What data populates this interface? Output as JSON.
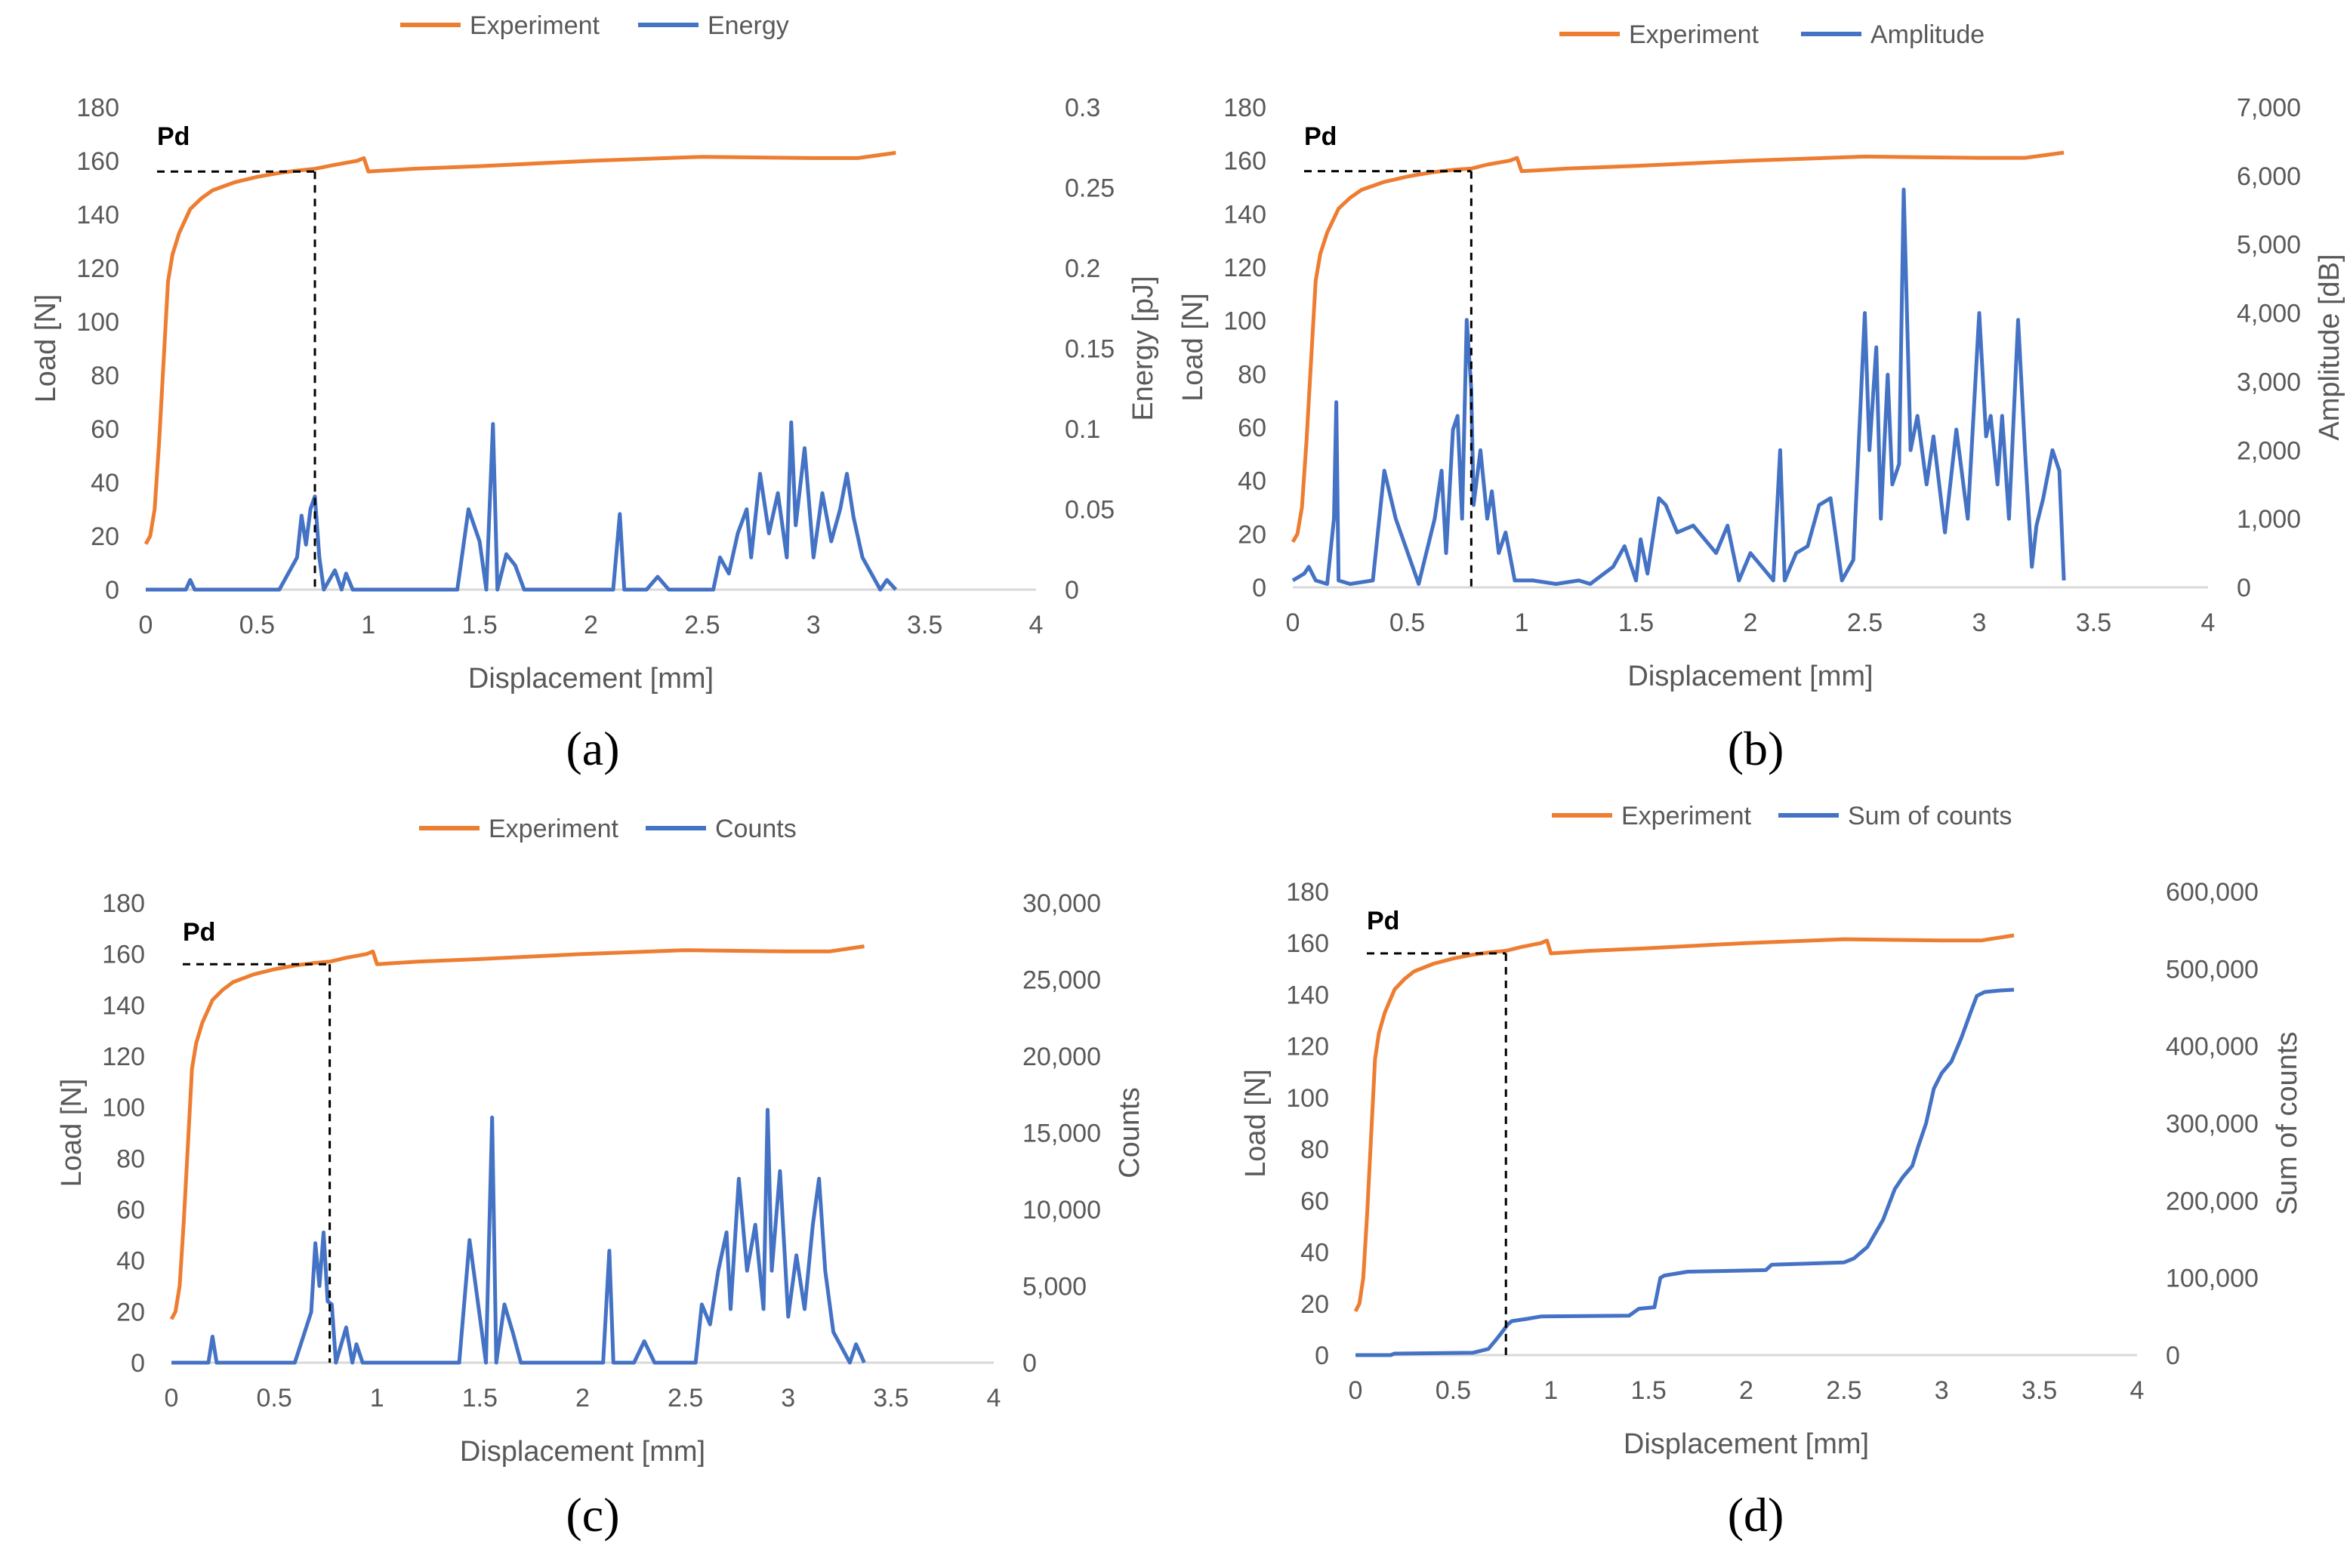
{
  "colors": {
    "experiment": "#ED7D31",
    "acoustic": "#4472C4",
    "axis_text": "#595959",
    "gridline": "#D9D9D9",
    "marker": "#000000"
  },
  "shared": {
    "xlabel": "Displacement [mm]",
    "ylabel_left": "Load [N]",
    "experiment_label": "Experiment",
    "pd_label": "Pd",
    "x_ticks": [
      "0",
      "0.5",
      "1",
      "1.5",
      "2",
      "2.5",
      "3",
      "3.5",
      "4"
    ],
    "y_left_ticks": [
      "0",
      "20",
      "40",
      "60",
      "80",
      "100",
      "120",
      "140",
      "160",
      "180"
    ]
  },
  "chart_data": [
    {
      "id": "a",
      "caption": "(a)",
      "type": "line",
      "title": "",
      "xlabel": "Displacement [mm]",
      "ylabel_left": "Load [N]",
      "ylabel_right": "Energy [pJ]",
      "xlim": [
        0,
        4
      ],
      "ylim_left": [
        0,
        180
      ],
      "ylim_right": [
        0,
        0.3
      ],
      "right_ticks": [
        "0",
        "0.05",
        "0.1",
        "0.15",
        "0.2",
        "0.25",
        "0.3"
      ],
      "legend": [
        "Experiment",
        "Energy"
      ],
      "pd": {
        "x": 0.76,
        "load": 156
      },
      "cumulative": false,
      "series": [
        {
          "name": "Experiment",
          "axis": "left",
          "x": [
            0,
            0.02,
            0.04,
            0.06,
            0.08,
            0.1,
            0.12,
            0.15,
            0.2,
            0.25,
            0.3,
            0.4,
            0.5,
            0.6,
            0.7,
            0.76,
            0.85,
            0.95,
            0.98,
            1.0,
            1.2,
            1.5,
            2.0,
            2.5,
            3.0,
            3.2,
            3.37
          ],
          "y": [
            17,
            20,
            30,
            55,
            85,
            115,
            125,
            133,
            142,
            146,
            149,
            152,
            154,
            155.5,
            156.5,
            157,
            158.5,
            160,
            161,
            156,
            157,
            158,
            160,
            161.5,
            161,
            161,
            163
          ]
        },
        {
          "name": "Energy",
          "axis": "right",
          "x": [
            0,
            0.18,
            0.2,
            0.22,
            0.6,
            0.68,
            0.7,
            0.72,
            0.74,
            0.76,
            0.78,
            0.8,
            0.85,
            0.88,
            0.9,
            0.93,
            0.95,
            1.4,
            1.45,
            1.5,
            1.53,
            1.56,
            1.58,
            1.62,
            1.66,
            1.7,
            2.1,
            2.13,
            2.15,
            2.25,
            2.3,
            2.35,
            2.55,
            2.58,
            2.62,
            2.66,
            2.7,
            2.72,
            2.76,
            2.8,
            2.84,
            2.88,
            2.9,
            2.92,
            2.96,
            3.0,
            3.04,
            3.08,
            3.12,
            3.15,
            3.18,
            3.22,
            3.3,
            3.33,
            3.37
          ],
          "y": [
            0,
            0,
            0.006,
            0,
            0,
            0.02,
            0.046,
            0.028,
            0.05,
            0.058,
            0.02,
            0,
            0.012,
            0,
            0.01,
            0,
            0,
            0,
            0.05,
            0.03,
            0,
            0.103,
            0,
            0.022,
            0.015,
            0,
            0,
            0.047,
            0,
            0,
            0.008,
            0,
            0,
            0.02,
            0.01,
            0.035,
            0.05,
            0.02,
            0.072,
            0.035,
            0.06,
            0.02,
            0.104,
            0.04,
            0.088,
            0.02,
            0.06,
            0.03,
            0.05,
            0.072,
            0.045,
            0.02,
            0,
            0.006,
            0
          ]
        }
      ]
    },
    {
      "id": "b",
      "caption": "(b)",
      "type": "line",
      "title": "",
      "xlabel": "Displacement [mm]",
      "ylabel_left": "Load [N]",
      "ylabel_right": "Amplitude [dB]",
      "xlim": [
        0,
        4
      ],
      "ylim_left": [
        0,
        180
      ],
      "ylim_right": [
        0,
        7000
      ],
      "right_ticks": [
        "0",
        "1,000",
        "2,000",
        "3,000",
        "4,000",
        "5,000",
        "6,000",
        "7,000"
      ],
      "legend": [
        "Experiment",
        "Amplitude"
      ],
      "pd": {
        "x": 0.78,
        "load": 156
      },
      "cumulative": false,
      "series": [
        {
          "name": "Experiment",
          "axis": "left",
          "x": [
            0,
            0.02,
            0.04,
            0.06,
            0.08,
            0.1,
            0.12,
            0.15,
            0.2,
            0.25,
            0.3,
            0.4,
            0.5,
            0.6,
            0.7,
            0.78,
            0.85,
            0.95,
            0.98,
            1.0,
            1.2,
            1.5,
            2.0,
            2.5,
            3.0,
            3.2,
            3.37
          ],
          "y": [
            17,
            20,
            30,
            55,
            85,
            115,
            125,
            133,
            142,
            146,
            149,
            152,
            154,
            155.5,
            156.5,
            157,
            158.5,
            160,
            161,
            156,
            157,
            158,
            160,
            161.5,
            161,
            161,
            163
          ]
        },
        {
          "name": "Amplitude",
          "axis": "right",
          "x": [
            0,
            0.05,
            0.07,
            0.1,
            0.15,
            0.18,
            0.19,
            0.2,
            0.25,
            0.35,
            0.4,
            0.45,
            0.55,
            0.62,
            0.65,
            0.67,
            0.7,
            0.72,
            0.74,
            0.76,
            0.78,
            0.79,
            0.82,
            0.85,
            0.87,
            0.9,
            0.93,
            0.97,
            1.05,
            1.15,
            1.25,
            1.3,
            1.4,
            1.45,
            1.5,
            1.52,
            1.55,
            1.6,
            1.63,
            1.68,
            1.75,
            1.85,
            1.9,
            1.95,
            2.0,
            2.05,
            2.1,
            2.13,
            2.15,
            2.2,
            2.25,
            2.3,
            2.35,
            2.4,
            2.45,
            2.5,
            2.52,
            2.55,
            2.57,
            2.6,
            2.62,
            2.65,
            2.67,
            2.7,
            2.73,
            2.77,
            2.8,
            2.85,
            2.9,
            2.95,
            3.0,
            3.03,
            3.05,
            3.08,
            3.1,
            3.13,
            3.17,
            3.2,
            3.23,
            3.25,
            3.28,
            3.32,
            3.35,
            3.37
          ],
          "y": [
            100,
            200,
            300,
            100,
            50,
            1000,
            2700,
            100,
            50,
            100,
            1700,
            1000,
            50,
            1000,
            1700,
            500,
            2300,
            2500,
            1000,
            3900,
            2900,
            1200,
            2000,
            1000,
            1400,
            500,
            800,
            100,
            100,
            50,
            100,
            50,
            300,
            600,
            100,
            700,
            200,
            1300,
            1200,
            800,
            900,
            500,
            900,
            100,
            500,
            300,
            100,
            2000,
            100,
            500,
            600,
            1200,
            1300,
            100,
            400,
            4000,
            2000,
            3500,
            1000,
            3100,
            1500,
            1800,
            5800,
            2000,
            2500,
            1500,
            2200,
            800,
            2300,
            1000,
            4000,
            2200,
            2500,
            1500,
            2500,
            1000,
            3900,
            2000,
            300,
            900,
            1300,
            2000,
            1700,
            100
          ]
        }
      ]
    },
    {
      "id": "c",
      "caption": "(c)",
      "type": "line",
      "title": "",
      "xlabel": "Displacement [mm]",
      "ylabel_left": "Load [N]",
      "ylabel_right": "Counts",
      "xlim": [
        0,
        4
      ],
      "ylim_left": [
        0,
        180
      ],
      "ylim_right": [
        0,
        30000
      ],
      "right_ticks": [
        "0",
        "5,000",
        "10,000",
        "15,000",
        "20,000",
        "25,000",
        "30,000"
      ],
      "legend": [
        "Experiment",
        "Counts"
      ],
      "pd": {
        "x": 0.77,
        "load": 156
      },
      "cumulative": false,
      "series": [
        {
          "name": "Experiment",
          "axis": "left",
          "x": [
            0,
            0.02,
            0.04,
            0.06,
            0.08,
            0.1,
            0.12,
            0.15,
            0.2,
            0.25,
            0.3,
            0.4,
            0.5,
            0.6,
            0.7,
            0.77,
            0.85,
            0.95,
            0.98,
            1.0,
            1.2,
            1.5,
            2.0,
            2.5,
            3.0,
            3.2,
            3.37
          ],
          "y": [
            17,
            20,
            30,
            55,
            85,
            115,
            125,
            133,
            142,
            146,
            149,
            152,
            154,
            155.5,
            156.5,
            157,
            158.5,
            160,
            161,
            156,
            157,
            158,
            160,
            161.5,
            161,
            161,
            163
          ]
        },
        {
          "name": "Counts",
          "axis": "right",
          "x": [
            0,
            0.18,
            0.2,
            0.22,
            0.6,
            0.68,
            0.7,
            0.72,
            0.74,
            0.76,
            0.78,
            0.8,
            0.85,
            0.88,
            0.9,
            0.93,
            0.95,
            1.4,
            1.45,
            1.5,
            1.53,
            1.56,
            1.58,
            1.62,
            1.66,
            1.7,
            2.1,
            2.13,
            2.15,
            2.25,
            2.3,
            2.35,
            2.55,
            2.58,
            2.62,
            2.66,
            2.7,
            2.72,
            2.76,
            2.8,
            2.84,
            2.88,
            2.9,
            2.92,
            2.96,
            3.0,
            3.04,
            3.08,
            3.12,
            3.15,
            3.18,
            3.22,
            3.3,
            3.33,
            3.37
          ],
          "y": [
            0,
            0,
            1700,
            0,
            0,
            3300,
            7800,
            5000,
            8500,
            4000,
            3800,
            0,
            2300,
            0,
            1200,
            0,
            0,
            0,
            8000,
            3000,
            0,
            16000,
            0,
            3800,
            2000,
            0,
            0,
            7300,
            0,
            0,
            1400,
            0,
            0,
            3800,
            2500,
            6000,
            8500,
            3500,
            12000,
            6000,
            9000,
            3500,
            16500,
            6000,
            12500,
            3000,
            7000,
            3500,
            9000,
            12000,
            6000,
            2000,
            0,
            1200,
            0
          ]
        }
      ]
    },
    {
      "id": "d",
      "caption": "(d)",
      "type": "line",
      "title": "",
      "xlabel": "Displacement [mm]",
      "ylabel_left": "Load [N]",
      "ylabel_right": "Sum of counts",
      "xlim": [
        0,
        4
      ],
      "ylim_left": [
        0,
        180
      ],
      "ylim_right": [
        0,
        600000
      ],
      "right_ticks": [
        "0",
        "100,000",
        "200,000",
        "300,000",
        "400,000",
        "500,000",
        "600,000"
      ],
      "legend": [
        "Experiment",
        "Sum of counts"
      ],
      "pd": {
        "x": 0.77,
        "load": 156
      },
      "cumulative": true,
      "series": [
        {
          "name": "Experiment",
          "axis": "left",
          "x": [
            0,
            0.02,
            0.04,
            0.06,
            0.08,
            0.1,
            0.12,
            0.15,
            0.2,
            0.25,
            0.3,
            0.4,
            0.5,
            0.6,
            0.7,
            0.77,
            0.85,
            0.95,
            0.98,
            1.0,
            1.2,
            1.5,
            2.0,
            2.5,
            3.0,
            3.2,
            3.37
          ],
          "y": [
            17,
            20,
            30,
            55,
            85,
            115,
            125,
            133,
            142,
            146,
            149,
            152,
            154,
            155.5,
            156.5,
            157,
            158.5,
            160,
            161,
            156,
            157,
            158,
            160,
            161.5,
            161,
            161,
            163
          ]
        },
        {
          "name": "Sum of counts",
          "axis": "right",
          "x": [
            0,
            0.18,
            0.2,
            0.6,
            0.68,
            0.72,
            0.76,
            0.78,
            0.8,
            0.88,
            0.95,
            1.4,
            1.45,
            1.53,
            1.56,
            1.58,
            1.7,
            2.1,
            2.13,
            2.5,
            2.55,
            2.62,
            2.7,
            2.76,
            2.8,
            2.85,
            2.88,
            2.92,
            2.96,
            3.0,
            3.05,
            3.1,
            3.15,
            3.18,
            3.22,
            3.3,
            3.37
          ],
          "y": [
            0,
            0,
            2000,
            3000,
            8000,
            20000,
            33000,
            40000,
            44000,
            47000,
            50000,
            51000,
            60000,
            62000,
            100000,
            103000,
            108000,
            110000,
            117000,
            120000,
            125000,
            140000,
            175000,
            215000,
            230000,
            245000,
            270000,
            300000,
            345000,
            365000,
            380000,
            410000,
            445000,
            465000,
            470000,
            472000,
            473000
          ]
        }
      ]
    }
  ]
}
